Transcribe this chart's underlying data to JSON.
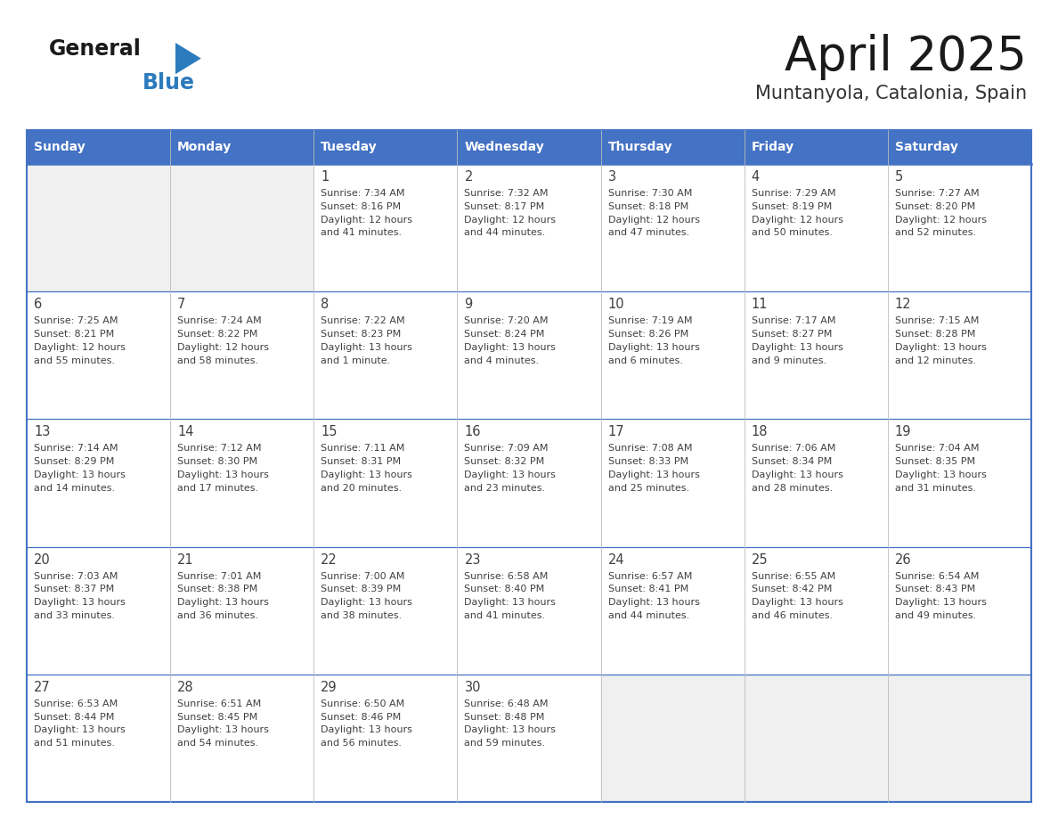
{
  "title": "April 2025",
  "subtitle": "Muntanyola, Catalonia, Spain",
  "header_bg": "#4472C4",
  "header_text_color": "#FFFFFF",
  "border_color": "#4472C4",
  "text_color": "#404040",
  "days_of_week": [
    "Sunday",
    "Monday",
    "Tuesday",
    "Wednesday",
    "Thursday",
    "Friday",
    "Saturday"
  ],
  "logo_general_color": "#1a1a1a",
  "logo_blue_color": "#2B7BBD",
  "logo_triangle_color": "#2B7BBD",
  "weeks": [
    [
      {
        "day": "",
        "info": ""
      },
      {
        "day": "",
        "info": ""
      },
      {
        "day": "1",
        "info": "Sunrise: 7:34 AM\nSunset: 8:16 PM\nDaylight: 12 hours\nand 41 minutes."
      },
      {
        "day": "2",
        "info": "Sunrise: 7:32 AM\nSunset: 8:17 PM\nDaylight: 12 hours\nand 44 minutes."
      },
      {
        "day": "3",
        "info": "Sunrise: 7:30 AM\nSunset: 8:18 PM\nDaylight: 12 hours\nand 47 minutes."
      },
      {
        "day": "4",
        "info": "Sunrise: 7:29 AM\nSunset: 8:19 PM\nDaylight: 12 hours\nand 50 minutes."
      },
      {
        "day": "5",
        "info": "Sunrise: 7:27 AM\nSunset: 8:20 PM\nDaylight: 12 hours\nand 52 minutes."
      }
    ],
    [
      {
        "day": "6",
        "info": "Sunrise: 7:25 AM\nSunset: 8:21 PM\nDaylight: 12 hours\nand 55 minutes."
      },
      {
        "day": "7",
        "info": "Sunrise: 7:24 AM\nSunset: 8:22 PM\nDaylight: 12 hours\nand 58 minutes."
      },
      {
        "day": "8",
        "info": "Sunrise: 7:22 AM\nSunset: 8:23 PM\nDaylight: 13 hours\nand 1 minute."
      },
      {
        "day": "9",
        "info": "Sunrise: 7:20 AM\nSunset: 8:24 PM\nDaylight: 13 hours\nand 4 minutes."
      },
      {
        "day": "10",
        "info": "Sunrise: 7:19 AM\nSunset: 8:26 PM\nDaylight: 13 hours\nand 6 minutes."
      },
      {
        "day": "11",
        "info": "Sunrise: 7:17 AM\nSunset: 8:27 PM\nDaylight: 13 hours\nand 9 minutes."
      },
      {
        "day": "12",
        "info": "Sunrise: 7:15 AM\nSunset: 8:28 PM\nDaylight: 13 hours\nand 12 minutes."
      }
    ],
    [
      {
        "day": "13",
        "info": "Sunrise: 7:14 AM\nSunset: 8:29 PM\nDaylight: 13 hours\nand 14 minutes."
      },
      {
        "day": "14",
        "info": "Sunrise: 7:12 AM\nSunset: 8:30 PM\nDaylight: 13 hours\nand 17 minutes."
      },
      {
        "day": "15",
        "info": "Sunrise: 7:11 AM\nSunset: 8:31 PM\nDaylight: 13 hours\nand 20 minutes."
      },
      {
        "day": "16",
        "info": "Sunrise: 7:09 AM\nSunset: 8:32 PM\nDaylight: 13 hours\nand 23 minutes."
      },
      {
        "day": "17",
        "info": "Sunrise: 7:08 AM\nSunset: 8:33 PM\nDaylight: 13 hours\nand 25 minutes."
      },
      {
        "day": "18",
        "info": "Sunrise: 7:06 AM\nSunset: 8:34 PM\nDaylight: 13 hours\nand 28 minutes."
      },
      {
        "day": "19",
        "info": "Sunrise: 7:04 AM\nSunset: 8:35 PM\nDaylight: 13 hours\nand 31 minutes."
      }
    ],
    [
      {
        "day": "20",
        "info": "Sunrise: 7:03 AM\nSunset: 8:37 PM\nDaylight: 13 hours\nand 33 minutes."
      },
      {
        "day": "21",
        "info": "Sunrise: 7:01 AM\nSunset: 8:38 PM\nDaylight: 13 hours\nand 36 minutes."
      },
      {
        "day": "22",
        "info": "Sunrise: 7:00 AM\nSunset: 8:39 PM\nDaylight: 13 hours\nand 38 minutes."
      },
      {
        "day": "23",
        "info": "Sunrise: 6:58 AM\nSunset: 8:40 PM\nDaylight: 13 hours\nand 41 minutes."
      },
      {
        "day": "24",
        "info": "Sunrise: 6:57 AM\nSunset: 8:41 PM\nDaylight: 13 hours\nand 44 minutes."
      },
      {
        "day": "25",
        "info": "Sunrise: 6:55 AM\nSunset: 8:42 PM\nDaylight: 13 hours\nand 46 minutes."
      },
      {
        "day": "26",
        "info": "Sunrise: 6:54 AM\nSunset: 8:43 PM\nDaylight: 13 hours\nand 49 minutes."
      }
    ],
    [
      {
        "day": "27",
        "info": "Sunrise: 6:53 AM\nSunset: 8:44 PM\nDaylight: 13 hours\nand 51 minutes."
      },
      {
        "day": "28",
        "info": "Sunrise: 6:51 AM\nSunset: 8:45 PM\nDaylight: 13 hours\nand 54 minutes."
      },
      {
        "day": "29",
        "info": "Sunrise: 6:50 AM\nSunset: 8:46 PM\nDaylight: 13 hours\nand 56 minutes."
      },
      {
        "day": "30",
        "info": "Sunrise: 6:48 AM\nSunset: 8:48 PM\nDaylight: 13 hours\nand 59 minutes."
      },
      {
        "day": "",
        "info": ""
      },
      {
        "day": "",
        "info": ""
      },
      {
        "day": "",
        "info": ""
      }
    ]
  ]
}
